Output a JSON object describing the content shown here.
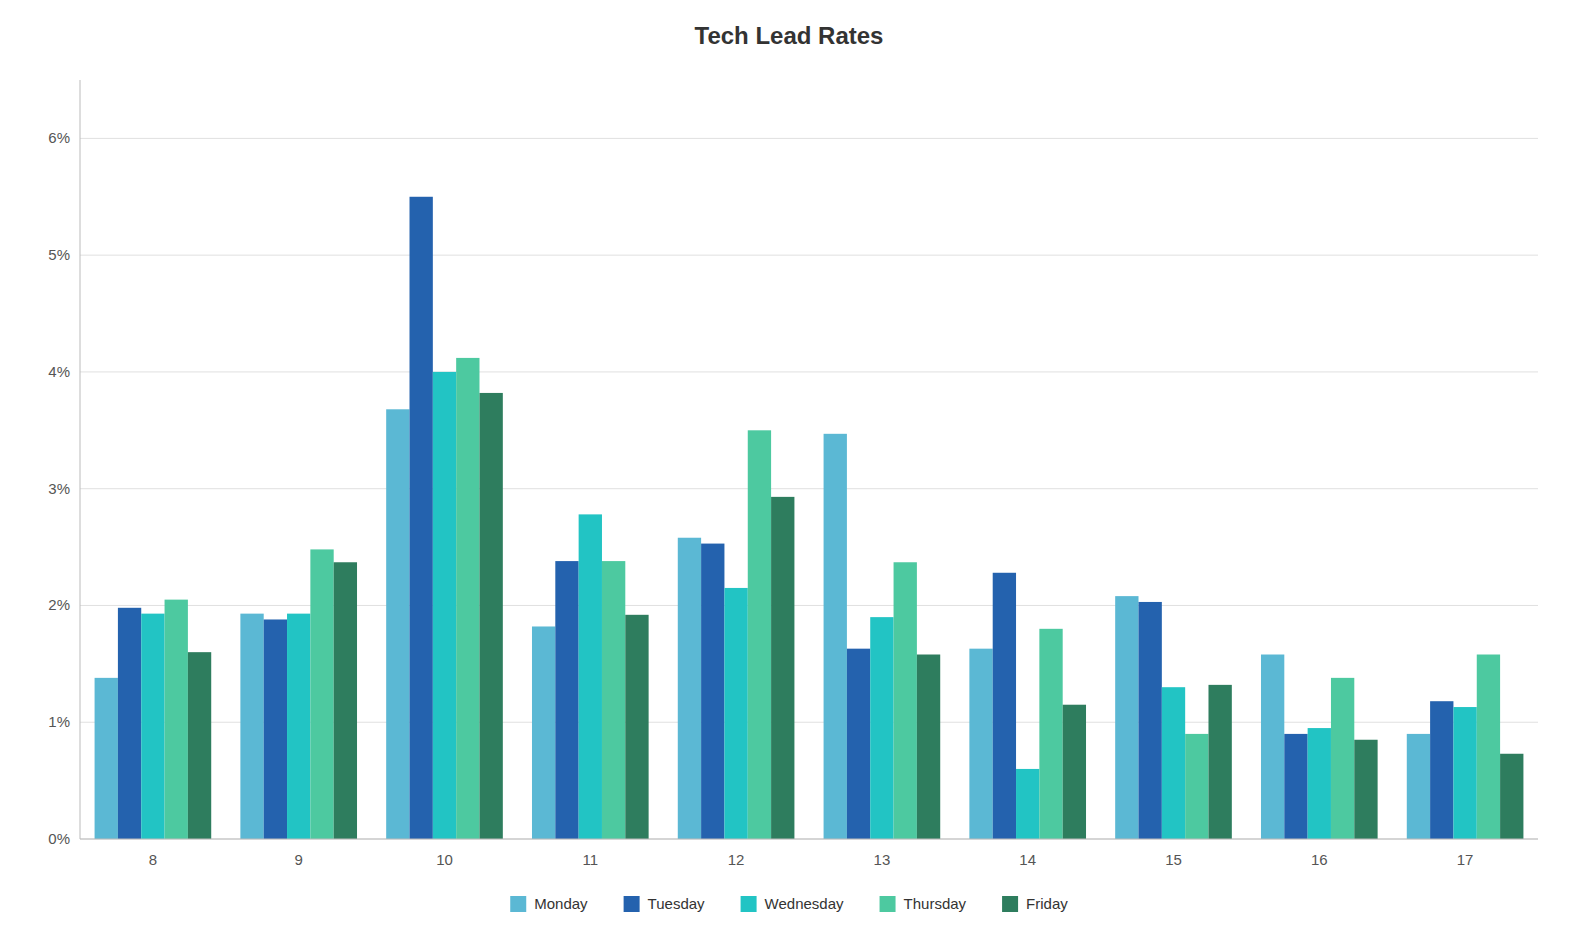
{
  "chart_data": {
    "type": "bar",
    "title": "Tech Lead Rates",
    "categories": [
      "8",
      "9",
      "10",
      "11",
      "12",
      "13",
      "14",
      "15",
      "16",
      "17"
    ],
    "series": [
      {
        "name": "Monday",
        "color": "#5BB8D4",
        "values": [
          0.0138,
          0.0193,
          0.0368,
          0.0182,
          0.0258,
          0.0347,
          0.0163,
          0.0208,
          0.0158,
          0.009
        ]
      },
      {
        "name": "Tuesday",
        "color": "#2462AE",
        "values": [
          0.0198,
          0.0188,
          0.055,
          0.0238,
          0.0253,
          0.0163,
          0.0228,
          0.0203,
          0.009,
          0.0118
        ]
      },
      {
        "name": "Wednesday",
        "color": "#22C4C4",
        "values": [
          0.0193,
          0.0193,
          0.04,
          0.0278,
          0.0215,
          0.019,
          0.006,
          0.013,
          0.0095,
          0.0113
        ]
      },
      {
        "name": "Thursday",
        "color": "#4DC9A0",
        "values": [
          0.0205,
          0.0248,
          0.0412,
          0.0238,
          0.035,
          0.0237,
          0.018,
          0.009,
          0.0138,
          0.0158
        ]
      },
      {
        "name": "Friday",
        "color": "#2E7D5E",
        "values": [
          0.016,
          0.0237,
          0.0382,
          0.0192,
          0.0293,
          0.0158,
          0.0115,
          0.0132,
          0.0085,
          0.0073
        ]
      }
    ],
    "ylim": [
      0,
      0.065
    ],
    "yticks": [
      {
        "value": 0,
        "label": "0%"
      },
      {
        "value": 0.01,
        "label": "1%"
      },
      {
        "value": 0.02,
        "label": "2%"
      },
      {
        "value": 0.03,
        "label": "3%"
      },
      {
        "value": 0.04,
        "label": "4%"
      },
      {
        "value": 0.05,
        "label": "5%"
      },
      {
        "value": 0.06,
        "label": "6%"
      }
    ],
    "grid": true,
    "legend": "bottom"
  }
}
